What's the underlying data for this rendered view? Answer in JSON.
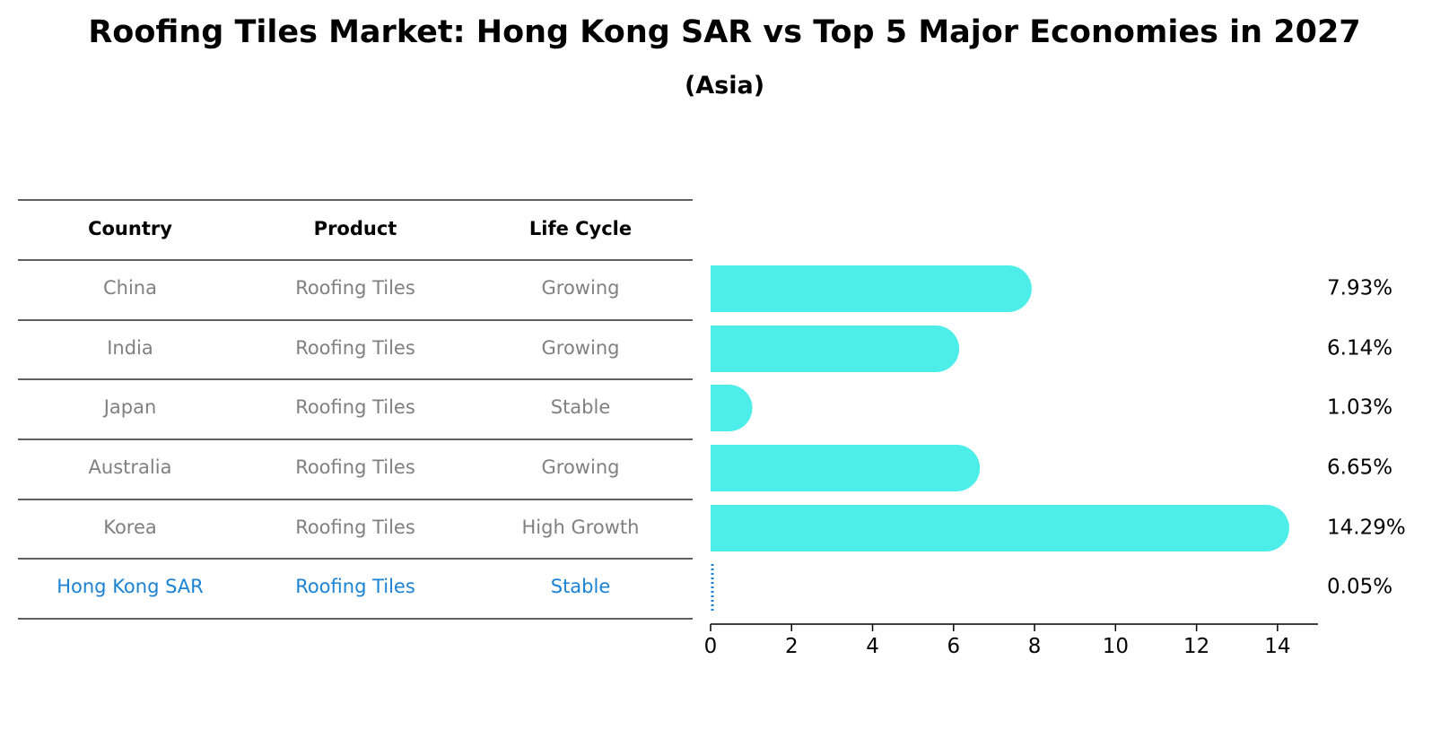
{
  "chart_data": {
    "type": "bar",
    "title": "Roofing Tiles Market: Hong Kong SAR vs Top 5 Major Economies in 2027",
    "subtitle": "(Asia)",
    "table": {
      "headers": [
        "Country",
        "Product",
        "Life Cycle"
      ],
      "rows": [
        {
          "country": "China",
          "product": "Roofing Tiles",
          "life_cycle": "Growing",
          "highlight": false
        },
        {
          "country": "India",
          "product": "Roofing Tiles",
          "life_cycle": "Growing",
          "highlight": false
        },
        {
          "country": "Japan",
          "product": "Roofing Tiles",
          "life_cycle": "Stable",
          "highlight": false
        },
        {
          "country": "Australia",
          "product": "Roofing Tiles",
          "life_cycle": "Growing",
          "highlight": false
        },
        {
          "country": "Korea",
          "product": "Roofing Tiles",
          "life_cycle": "High Growth",
          "highlight": false
        },
        {
          "country": "Hong Kong SAR",
          "product": "Roofing Tiles",
          "life_cycle": "Stable",
          "highlight": true
        }
      ]
    },
    "categories": [
      "China",
      "India",
      "Japan",
      "Australia",
      "Korea",
      "Hong Kong SAR"
    ],
    "values": [
      7.93,
      6.14,
      1.03,
      6.65,
      14.29,
      0.05
    ],
    "value_labels": [
      "7.93%",
      "6.14%",
      "1.03%",
      "6.65%",
      "14.29%",
      "0.05%"
    ],
    "xlim": [
      0,
      15
    ],
    "xticks": [
      0,
      2,
      4,
      6,
      8,
      10,
      12,
      14
    ],
    "xlabel": "",
    "ylabel": "",
    "colors": {
      "bar": "#4DEEEA",
      "highlight": "#1A83D4",
      "muted_text": "#808080",
      "rule": "#000000"
    }
  }
}
